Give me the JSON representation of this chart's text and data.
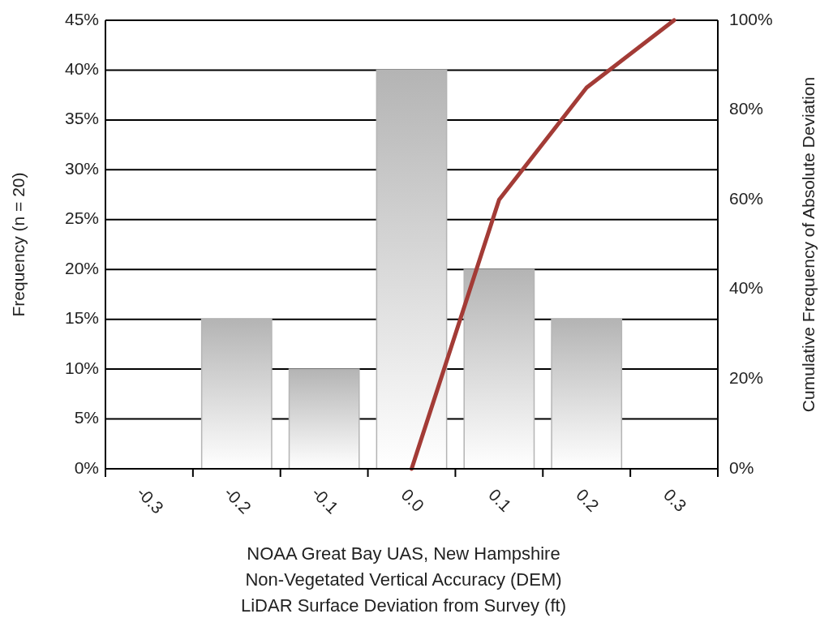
{
  "chart_data": {
    "type": "bar",
    "xlabel": "NOAA Great Bay UAS, New Hampshire\nNon-Vegetated Vertical Accuracy (DEM)\nLiDAR Surface Deviation from Survey (ft)",
    "ylabel": "Frequency (n = 20)",
    "y2label": "Cumulative Frequency of Absolute Deviation",
    "categories": [
      "-0.3",
      "-0.2",
      "-0.1",
      "0.0",
      "0.1",
      "0.2",
      "0.3"
    ],
    "series": [
      {
        "color": "#b4b4b4",
        "values": [
          0,
          15,
          10,
          40,
          20,
          15,
          0
        ]
      },
      {
        "type": "line",
        "axis": "y2",
        "color": "#a33b36",
        "values": [
          null,
          null,
          null,
          0,
          60,
          85,
          100
        ]
      }
    ],
    "ylim": [
      0,
      45
    ],
    "yticks": [
      {
        "value": 0,
        "label": "0%"
      },
      {
        "value": 5,
        "label": "5%"
      },
      {
        "value": 10,
        "label": "10%"
      },
      {
        "value": 15,
        "label": "15%"
      },
      {
        "value": 20,
        "label": "20%"
      },
      {
        "value": 25,
        "label": "25%"
      },
      {
        "value": 30,
        "label": "30%"
      },
      {
        "value": 35,
        "label": "35%"
      },
      {
        "value": 40,
        "label": "40%"
      },
      {
        "value": 45,
        "label": "45%"
      }
    ],
    "y2lim": [
      0,
      100
    ],
    "y2ticks": [
      {
        "value": 0,
        "label": "0%"
      },
      {
        "value": 20,
        "label": "20%"
      },
      {
        "value": 40,
        "label": "40%"
      },
      {
        "value": 60,
        "label": "60%"
      },
      {
        "value": 80,
        "label": "80%"
      },
      {
        "value": 100,
        "label": "100%"
      }
    ],
    "grid": "y"
  }
}
